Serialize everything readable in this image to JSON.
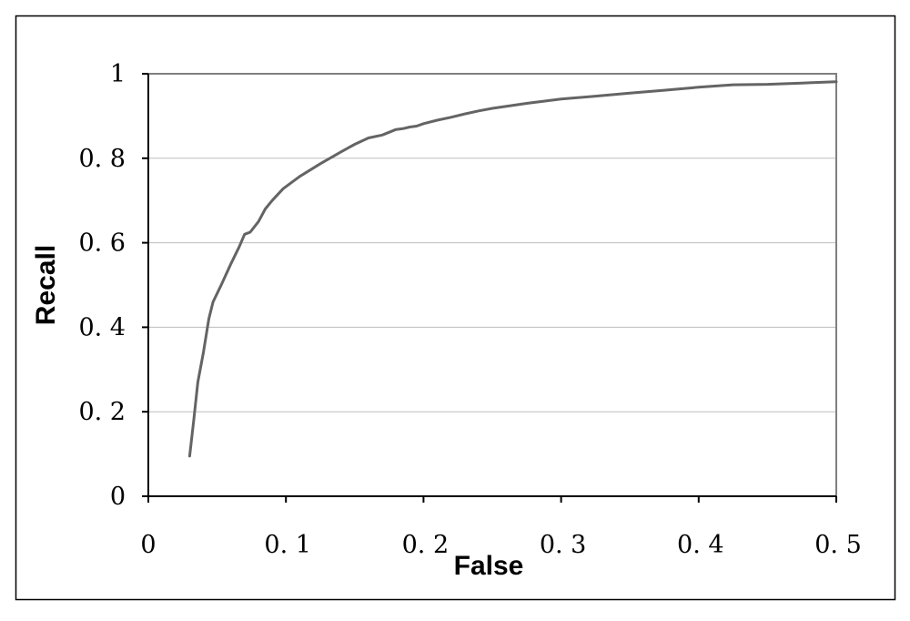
{
  "chart_data": {
    "type": "line",
    "xlabel": "False",
    "ylabel": "Recall",
    "xlim": [
      0,
      0.5
    ],
    "ylim": [
      0,
      1
    ],
    "x_ticks": [
      0,
      0.1,
      0.2,
      0.3,
      0.4,
      0.5
    ],
    "y_ticks": [
      0,
      0.2,
      0.4,
      0.6,
      0.8,
      1
    ],
    "x_tick_labels": [
      "0",
      "0. 1",
      "0. 2",
      "0. 3",
      "0. 4",
      "0. 5"
    ],
    "y_tick_labels": [
      "0",
      "0. 2",
      "0. 4",
      "0. 6",
      "0. 8",
      "1"
    ],
    "grid": "horizontal",
    "legend": "none",
    "colors": {
      "line": "#646464",
      "grid": "#bdbdbd",
      "axis": "#000000",
      "frame": "#7f7f7f"
    },
    "series": [
      {
        "x": [
          0.03,
          0.033,
          0.036,
          0.04,
          0.044,
          0.047,
          0.05,
          0.053,
          0.06,
          0.066,
          0.07,
          0.074,
          0.08,
          0.085,
          0.09,
          0.098,
          0.11,
          0.125,
          0.14,
          0.15,
          0.16,
          0.17,
          0.18,
          0.185,
          0.19,
          0.195,
          0.2,
          0.21,
          0.22,
          0.23,
          0.24,
          0.25,
          0.275,
          0.3,
          0.325,
          0.35,
          0.375,
          0.4,
          0.425,
          0.45,
          0.475,
          0.5
        ],
        "y": [
          0.095,
          0.18,
          0.27,
          0.34,
          0.42,
          0.46,
          0.48,
          0.5,
          0.55,
          0.59,
          0.62,
          0.625,
          0.65,
          0.68,
          0.7,
          0.728,
          0.757,
          0.787,
          0.815,
          0.833,
          0.848,
          0.855,
          0.868,
          0.87,
          0.874,
          0.876,
          0.882,
          0.89,
          0.897,
          0.905,
          0.912,
          0.918,
          0.93,
          0.94,
          0.947,
          0.954,
          0.961,
          0.968,
          0.974,
          0.975,
          0.978,
          0.981
        ]
      }
    ]
  }
}
